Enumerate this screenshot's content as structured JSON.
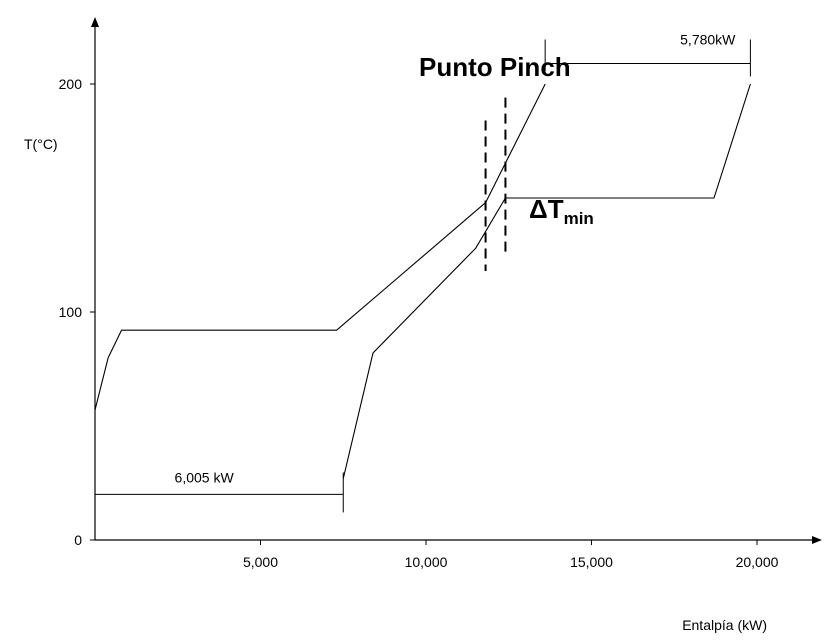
{
  "chart_data": {
    "type": "line",
    "xlabel": "Entalpía (kW)",
    "ylabel": "T(°C)",
    "xlim": [
      0,
      21500
    ],
    "ylim": [
      0,
      228
    ],
    "x_ticks": [
      {
        "value": 5000,
        "label": "5,000"
      },
      {
        "value": 10000,
        "label": "10,000"
      },
      {
        "value": 15000,
        "label": "15,000"
      },
      {
        "value": 20000,
        "label": "20,000"
      }
    ],
    "y_ticks": [
      {
        "value": 0,
        "label": "0"
      },
      {
        "value": 100,
        "label": "100"
      },
      {
        "value": 200,
        "label": "200"
      }
    ],
    "series": [
      {
        "points": [
          [
            0,
            57
          ],
          [
            400,
            80
          ],
          [
            800,
            92
          ],
          [
            7300,
            92
          ],
          [
            11800,
            148
          ],
          [
            13600,
            200
          ]
        ]
      },
      {
        "points": [
          [
            7500,
            27
          ],
          [
            8400,
            82
          ],
          [
            11500,
            128
          ],
          [
            12400,
            150
          ],
          [
            18700,
            150
          ],
          [
            19800,
            200
          ]
        ]
      }
    ],
    "annotations": {
      "pinch_label": "Punto Pinch",
      "dtmin_main": "ΔT",
      "dtmin_sub": "min",
      "hot_utility_label": "5,780kW",
      "cold_utility_label": "6,005 kW",
      "pinch_lines": [
        {
          "x": 11800,
          "y_from": 118,
          "y_to": 184
        },
        {
          "x": 12400,
          "y_from": 126,
          "y_to": 194
        }
      ],
      "hot_utility_span": {
        "x_from": 13600,
        "x_to": 19800,
        "y": 209
      },
      "cold_utility_span": {
        "x_from": 0,
        "x_to": 7500,
        "y": 20
      }
    }
  }
}
